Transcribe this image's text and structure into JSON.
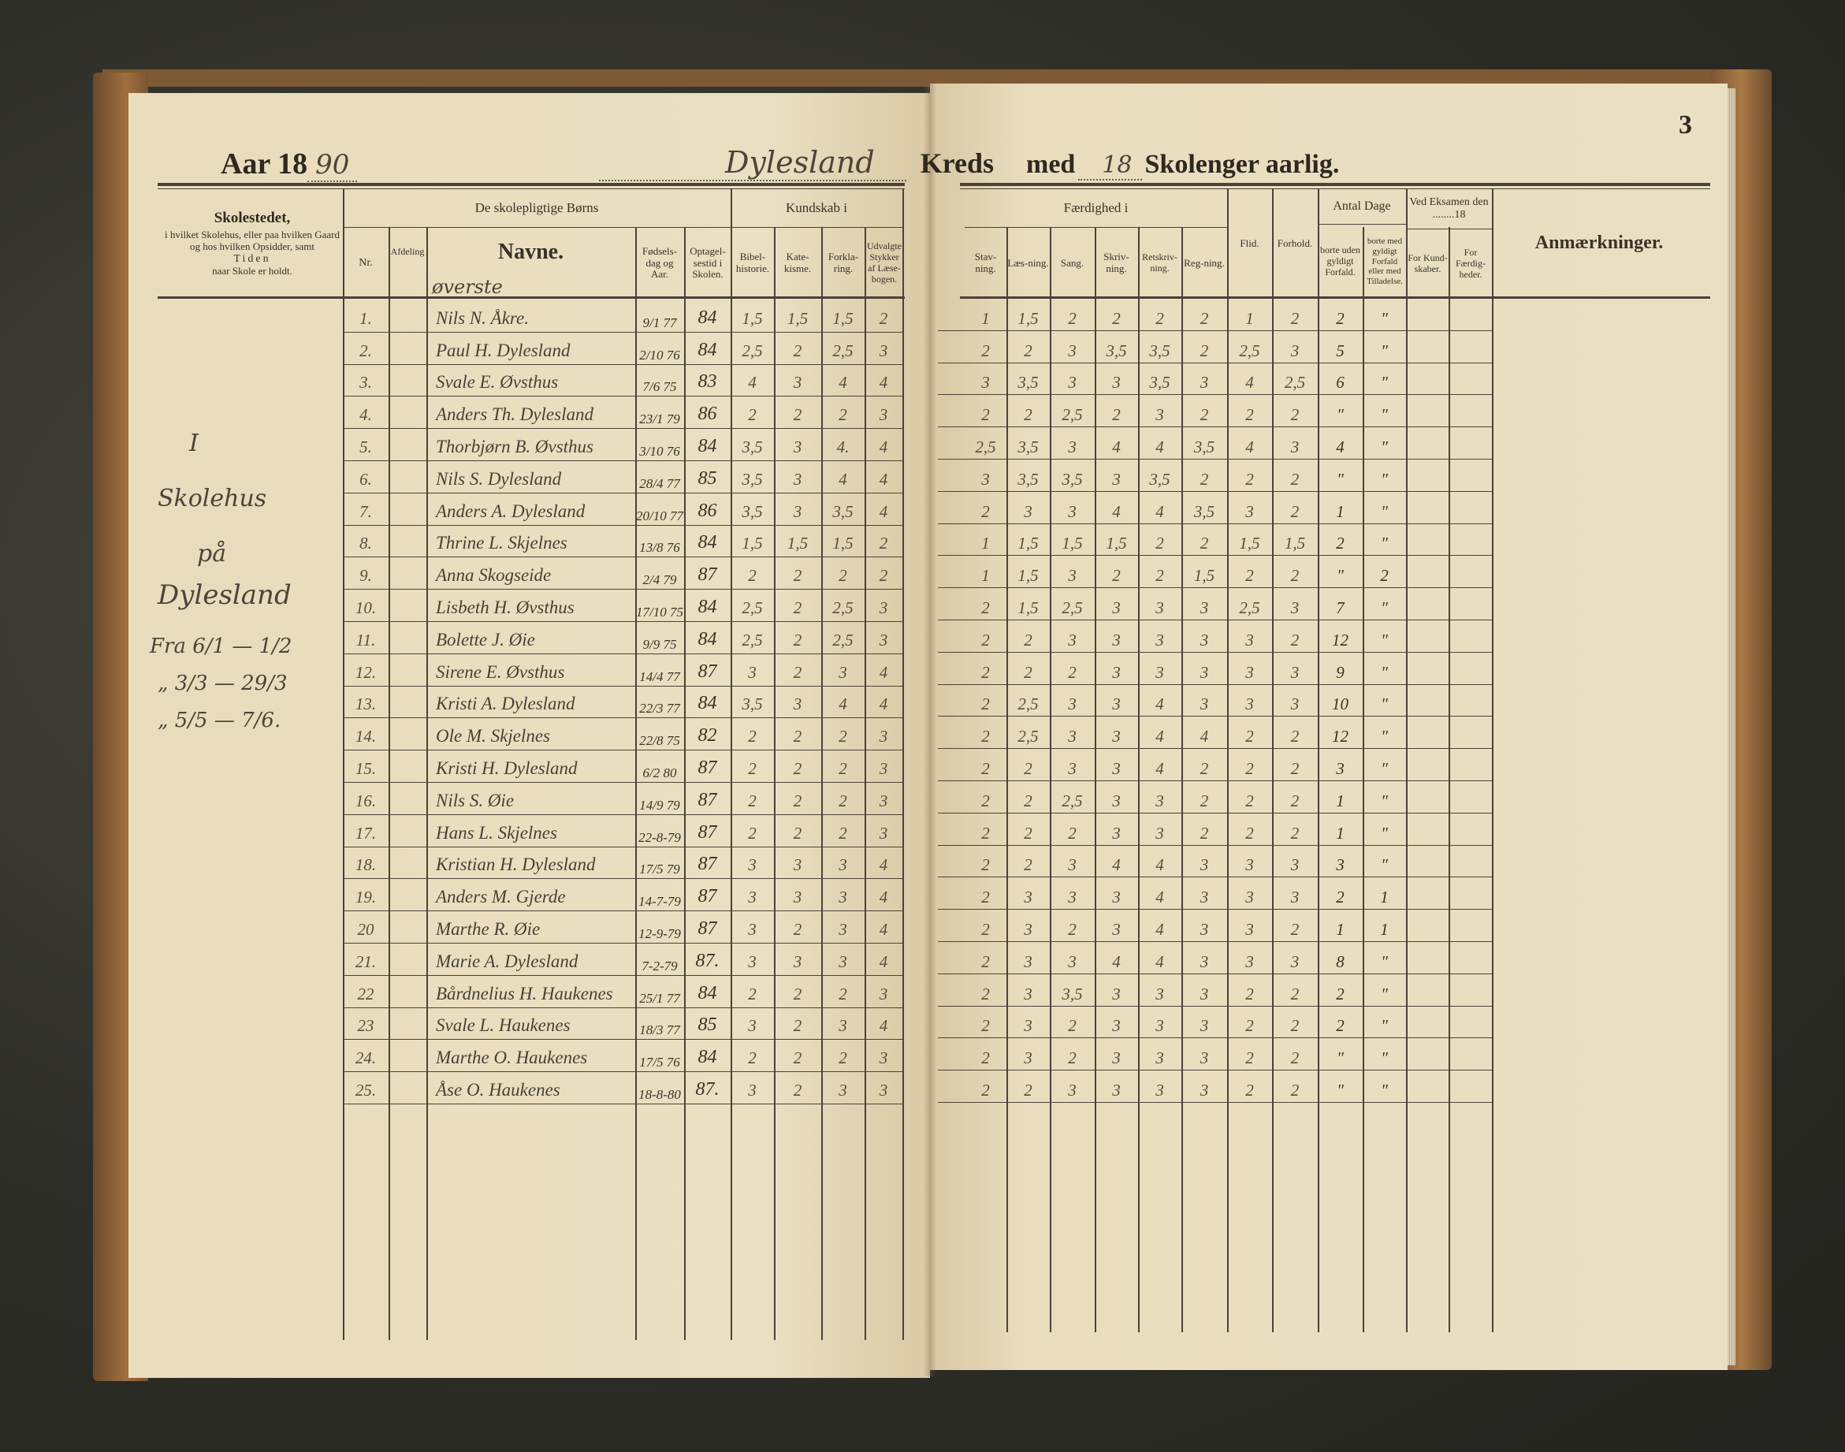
{
  "page_number": "3",
  "heading": {
    "year_label": "Aar 18",
    "year_value": "90",
    "district_value": "Dylesland",
    "district_label": "Kreds",
    "with_label": "med",
    "weeks_value": "18",
    "weeks_label": "Skolenger aarlig."
  },
  "left_header": {
    "school_title": "Skolestedet,",
    "school_desc": "i hvilket Skolehus, eller paa hvilken Gaard og hos hvilken Opsidder, samt",
    "school_time": "Tiden",
    "school_time2": "naar Skole er holdt.",
    "children_group": "De skolepligtige Børns",
    "nr": "Nr.",
    "division": "Afdeling",
    "names": "Navne.",
    "birth": "Fødsels-dag og Aar.",
    "admitted": "Optagel-sestid i Skolen.",
    "knowledge_group": "Kundskab i",
    "bible_history": "Bibel-historie.",
    "catechism": "Kate-kisme.",
    "explanation": "Forkla-ring.",
    "reader": "Udvalgte Stykker af Læse-bogen."
  },
  "right_header": {
    "skill_group": "Færdighed i",
    "spelling": "Stav-ning.",
    "reading": "Læs-ning.",
    "singing": "Sang.",
    "writing": "Skriv-ning.",
    "orthography": "Retskriv-ning.",
    "arithmetic": "Reg-ning.",
    "diligence": "Flid.",
    "conduct": "Forhold.",
    "days_group": "Antal Dage",
    "absent_without": "borte uden gyldigt Forfald.",
    "absent_with": "borte med gyldigt Forfald eller med Tilladelse.",
    "exam_group": "Ved Eksamen den ........18",
    "exam_knowledge": "For Kund-skaber.",
    "exam_skills": "For Færdig-heder.",
    "remarks": "Anmærkninger."
  },
  "division_value": "øverste",
  "school_note": [
    "I",
    "Skolehus",
    "på",
    "Dylesland",
    "Fra 6/1 — 1/2",
    "„ 3/3 — 29/3",
    "„ 5/5 — 7/6."
  ],
  "rows": [
    {
      "nr": "1.",
      "name": "Nils N. Åkre.",
      "birth": "9/1 77",
      "admitted": "84",
      "bibel": "1,5",
      "kat": "1,5",
      "fork": "1,5",
      "udv": "2",
      "stav": "1",
      "laes": "1,5",
      "sang": "2",
      "skriv": "2",
      "ret": "2",
      "reg": "2",
      "flid": "1",
      "forh": "2",
      "uden": "2",
      "med": "\""
    },
    {
      "nr": "2.",
      "name": "Paul H. Dylesland",
      "birth": "2/10 76",
      "admitted": "84",
      "bibel": "2,5",
      "kat": "2",
      "fork": "2,5",
      "udv": "3",
      "stav": "2",
      "laes": "2",
      "sang": "3",
      "skriv": "3,5",
      "ret": "3,5",
      "reg": "2",
      "flid": "2,5",
      "forh": "3",
      "uden": "5",
      "med": "\""
    },
    {
      "nr": "3.",
      "name": "Svale E. Øvsthus",
      "birth": "7/6 75",
      "admitted": "83",
      "bibel": "4",
      "kat": "3",
      "fork": "4",
      "udv": "4",
      "stav": "3",
      "laes": "3,5",
      "sang": "3",
      "skriv": "3",
      "ret": "3,5",
      "reg": "3",
      "flid": "4",
      "forh": "2,5",
      "uden": "6",
      "med": "\""
    },
    {
      "nr": "4.",
      "name": "Anders Th. Dylesland",
      "birth": "23/1 79",
      "admitted": "86",
      "bibel": "2",
      "kat": "2",
      "fork": "2",
      "udv": "3",
      "stav": "2",
      "laes": "2",
      "sang": "2,5",
      "skriv": "2",
      "ret": "3",
      "reg": "2",
      "flid": "2",
      "forh": "2",
      "uden": "\"",
      "med": "\""
    },
    {
      "nr": "5.",
      "name": "Thorbjørn B. Øvsthus",
      "birth": "3/10 76",
      "admitted": "84",
      "bibel": "3,5",
      "kat": "3",
      "fork": "4.",
      "udv": "4",
      "stav": "2,5",
      "laes": "3,5",
      "sang": "3",
      "skriv": "4",
      "ret": "4",
      "reg": "3,5",
      "flid": "4",
      "forh": "3",
      "uden": "4",
      "med": "\""
    },
    {
      "nr": "6.",
      "name": "Nils S. Dylesland",
      "birth": "28/4 77",
      "admitted": "85",
      "bibel": "3,5",
      "kat": "3",
      "fork": "4",
      "udv": "4",
      "stav": "3",
      "laes": "3,5",
      "sang": "3,5",
      "skriv": "3",
      "ret": "3,5",
      "reg": "2",
      "flid": "2",
      "forh": "2",
      "uden": "\"",
      "med": "\""
    },
    {
      "nr": "7.",
      "name": "Anders A. Dylesland",
      "birth": "20/10 77",
      "admitted": "86",
      "bibel": "3,5",
      "kat": "3",
      "fork": "3,5",
      "udv": "4",
      "stav": "2",
      "laes": "3",
      "sang": "3",
      "skriv": "4",
      "ret": "4",
      "reg": "3,5",
      "flid": "3",
      "forh": "2",
      "uden": "1",
      "med": "\""
    },
    {
      "nr": "8.",
      "name": "Thrine L. Skjelnes",
      "birth": "13/8 76",
      "admitted": "84",
      "bibel": "1,5",
      "kat": "1,5",
      "fork": "1,5",
      "udv": "2",
      "stav": "1",
      "laes": "1,5",
      "sang": "1,5",
      "skriv": "1,5",
      "ret": "2",
      "reg": "2",
      "flid": "1,5",
      "forh": "1,5",
      "uden": "2",
      "med": "\""
    },
    {
      "nr": "9.",
      "name": "Anna Skogseide",
      "birth": "2/4 79",
      "admitted": "87",
      "bibel": "2",
      "kat": "2",
      "fork": "2",
      "udv": "2",
      "stav": "1",
      "laes": "1,5",
      "sang": "3",
      "skriv": "2",
      "ret": "2",
      "reg": "1,5",
      "flid": "2",
      "forh": "2",
      "uden": "\"",
      "med": "2"
    },
    {
      "nr": "10.",
      "name": "Lisbeth H. Øvsthus",
      "birth": "17/10 75",
      "admitted": "84",
      "bibel": "2,5",
      "kat": "2",
      "fork": "2,5",
      "udv": "3",
      "stav": "2",
      "laes": "1,5",
      "sang": "2,5",
      "skriv": "3",
      "ret": "3",
      "reg": "3",
      "flid": "2,5",
      "forh": "3",
      "uden": "7",
      "med": "\""
    },
    {
      "nr": "11.",
      "name": "Bolette J. Øie",
      "birth": "9/9 75",
      "admitted": "84",
      "bibel": "2,5",
      "kat": "2",
      "fork": "2,5",
      "udv": "3",
      "stav": "2",
      "laes": "2",
      "sang": "3",
      "skriv": "3",
      "ret": "3",
      "reg": "3",
      "flid": "3",
      "forh": "2",
      "uden": "12",
      "med": "\""
    },
    {
      "nr": "12.",
      "name": "Sirene E. Øvsthus",
      "birth": "14/4 77",
      "admitted": "87",
      "bibel": "3",
      "kat": "2",
      "fork": "3",
      "udv": "4",
      "stav": "2",
      "laes": "2",
      "sang": "2",
      "skriv": "3",
      "ret": "3",
      "reg": "3",
      "flid": "3",
      "forh": "3",
      "uden": "9",
      "med": "\""
    },
    {
      "nr": "13.",
      "name": "Kristi A. Dylesland",
      "birth": "22/3 77",
      "admitted": "84",
      "bibel": "3,5",
      "kat": "3",
      "fork": "4",
      "udv": "4",
      "stav": "2",
      "laes": "2,5",
      "sang": "3",
      "skriv": "3",
      "ret": "4",
      "reg": "3",
      "flid": "3",
      "forh": "3",
      "uden": "10",
      "med": "\""
    },
    {
      "nr": "14.",
      "name": "Ole M. Skjelnes",
      "birth": "22/8 75",
      "admitted": "82",
      "bibel": "2",
      "kat": "2",
      "fork": "2",
      "udv": "3",
      "stav": "2",
      "laes": "2,5",
      "sang": "3",
      "skriv": "3",
      "ret": "4",
      "reg": "4",
      "flid": "2",
      "forh": "2",
      "uden": "12",
      "med": "\""
    },
    {
      "nr": "15.",
      "name": "Kristi H. Dylesland",
      "birth": "6/2 80",
      "admitted": "87",
      "bibel": "2",
      "kat": "2",
      "fork": "2",
      "udv": "3",
      "stav": "2",
      "laes": "2",
      "sang": "3",
      "skriv": "3",
      "ret": "4",
      "reg": "2",
      "flid": "2",
      "forh": "2",
      "uden": "3",
      "med": "\""
    },
    {
      "nr": "16.",
      "name": "Nils S. Øie",
      "birth": "14/9 79",
      "admitted": "87",
      "bibel": "2",
      "kat": "2",
      "fork": "2",
      "udv": "3",
      "stav": "2",
      "laes": "2",
      "sang": "2,5",
      "skriv": "3",
      "ret": "3",
      "reg": "2",
      "flid": "2",
      "forh": "2",
      "uden": "1",
      "med": "\""
    },
    {
      "nr": "17.",
      "name": "Hans L. Skjelnes",
      "birth": "22-8-79",
      "admitted": "87",
      "bibel": "2",
      "kat": "2",
      "fork": "2",
      "udv": "3",
      "stav": "2",
      "laes": "2",
      "sang": "2",
      "skriv": "3",
      "ret": "3",
      "reg": "2",
      "flid": "2",
      "forh": "2",
      "uden": "1",
      "med": "\""
    },
    {
      "nr": "18.",
      "name": "Kristian H. Dylesland",
      "birth": "17/5 79",
      "admitted": "87",
      "bibel": "3",
      "kat": "3",
      "fork": "3",
      "udv": "4",
      "stav": "2",
      "laes": "2",
      "sang": "3",
      "skriv": "4",
      "ret": "4",
      "reg": "3",
      "flid": "3",
      "forh": "3",
      "uden": "3",
      "med": "\""
    },
    {
      "nr": "19.",
      "name": "Anders M. Gjerde",
      "birth": "14-7-79",
      "admitted": "87",
      "bibel": "3",
      "kat": "3",
      "fork": "3",
      "udv": "4",
      "stav": "2",
      "laes": "3",
      "sang": "3",
      "skriv": "3",
      "ret": "4",
      "reg": "3",
      "flid": "3",
      "forh": "3",
      "uden": "2",
      "med": "1"
    },
    {
      "nr": "20",
      "name": "Marthe R. Øie",
      "birth": "12-9-79",
      "admitted": "87",
      "bibel": "3",
      "kat": "2",
      "fork": "3",
      "udv": "4",
      "stav": "2",
      "laes": "3",
      "sang": "2",
      "skriv": "3",
      "ret": "4",
      "reg": "3",
      "flid": "3",
      "forh": "2",
      "uden": "1",
      "med": "1"
    },
    {
      "nr": "21.",
      "name": "Marie A. Dylesland",
      "birth": "7-2-79",
      "admitted": "87.",
      "bibel": "3",
      "kat": "3",
      "fork": "3",
      "udv": "4",
      "stav": "2",
      "laes": "3",
      "sang": "3",
      "skriv": "4",
      "ret": "4",
      "reg": "3",
      "flid": "3",
      "forh": "3",
      "uden": "8",
      "med": "\""
    },
    {
      "nr": "22",
      "name": "Bårdnelius H. Haukenes",
      "birth": "25/1 77",
      "admitted": "84",
      "bibel": "2",
      "kat": "2",
      "fork": "2",
      "udv": "3",
      "stav": "2",
      "laes": "3",
      "sang": "3,5",
      "skriv": "3",
      "ret": "3",
      "reg": "3",
      "flid": "2",
      "forh": "2",
      "uden": "2",
      "med": "\""
    },
    {
      "nr": "23",
      "name": "Svale L. Haukenes",
      "birth": "18/3 77",
      "admitted": "85",
      "bibel": "3",
      "kat": "2",
      "fork": "3",
      "udv": "4",
      "stav": "2",
      "laes": "3",
      "sang": "2",
      "skriv": "3",
      "ret": "3",
      "reg": "3",
      "flid": "2",
      "forh": "2",
      "uden": "2",
      "med": "\""
    },
    {
      "nr": "24.",
      "name": "Marthe O. Haukenes",
      "birth": "17/5 76",
      "admitted": "84",
      "bibel": "2",
      "kat": "2",
      "fork": "2",
      "udv": "3",
      "stav": "2",
      "laes": "3",
      "sang": "2",
      "skriv": "3",
      "ret": "3",
      "reg": "3",
      "flid": "2",
      "forh": "2",
      "uden": "\"",
      "med": "\""
    },
    {
      "nr": "25.",
      "name": "Åse O. Haukenes",
      "birth": "18-8-80",
      "admitted": "87.",
      "bibel": "3",
      "kat": "2",
      "fork": "3",
      "udv": "3",
      "stav": "2",
      "laes": "2",
      "sang": "3",
      "skriv": "3",
      "ret": "3",
      "reg": "3",
      "flid": "2",
      "forh": "2",
      "uden": "\"",
      "med": "\""
    }
  ],
  "colors": {
    "paper": "#e9dcbc",
    "ink_print": "#2f2820",
    "ink_hand": "#4e4438",
    "cover_leather": "#a0703e"
  }
}
